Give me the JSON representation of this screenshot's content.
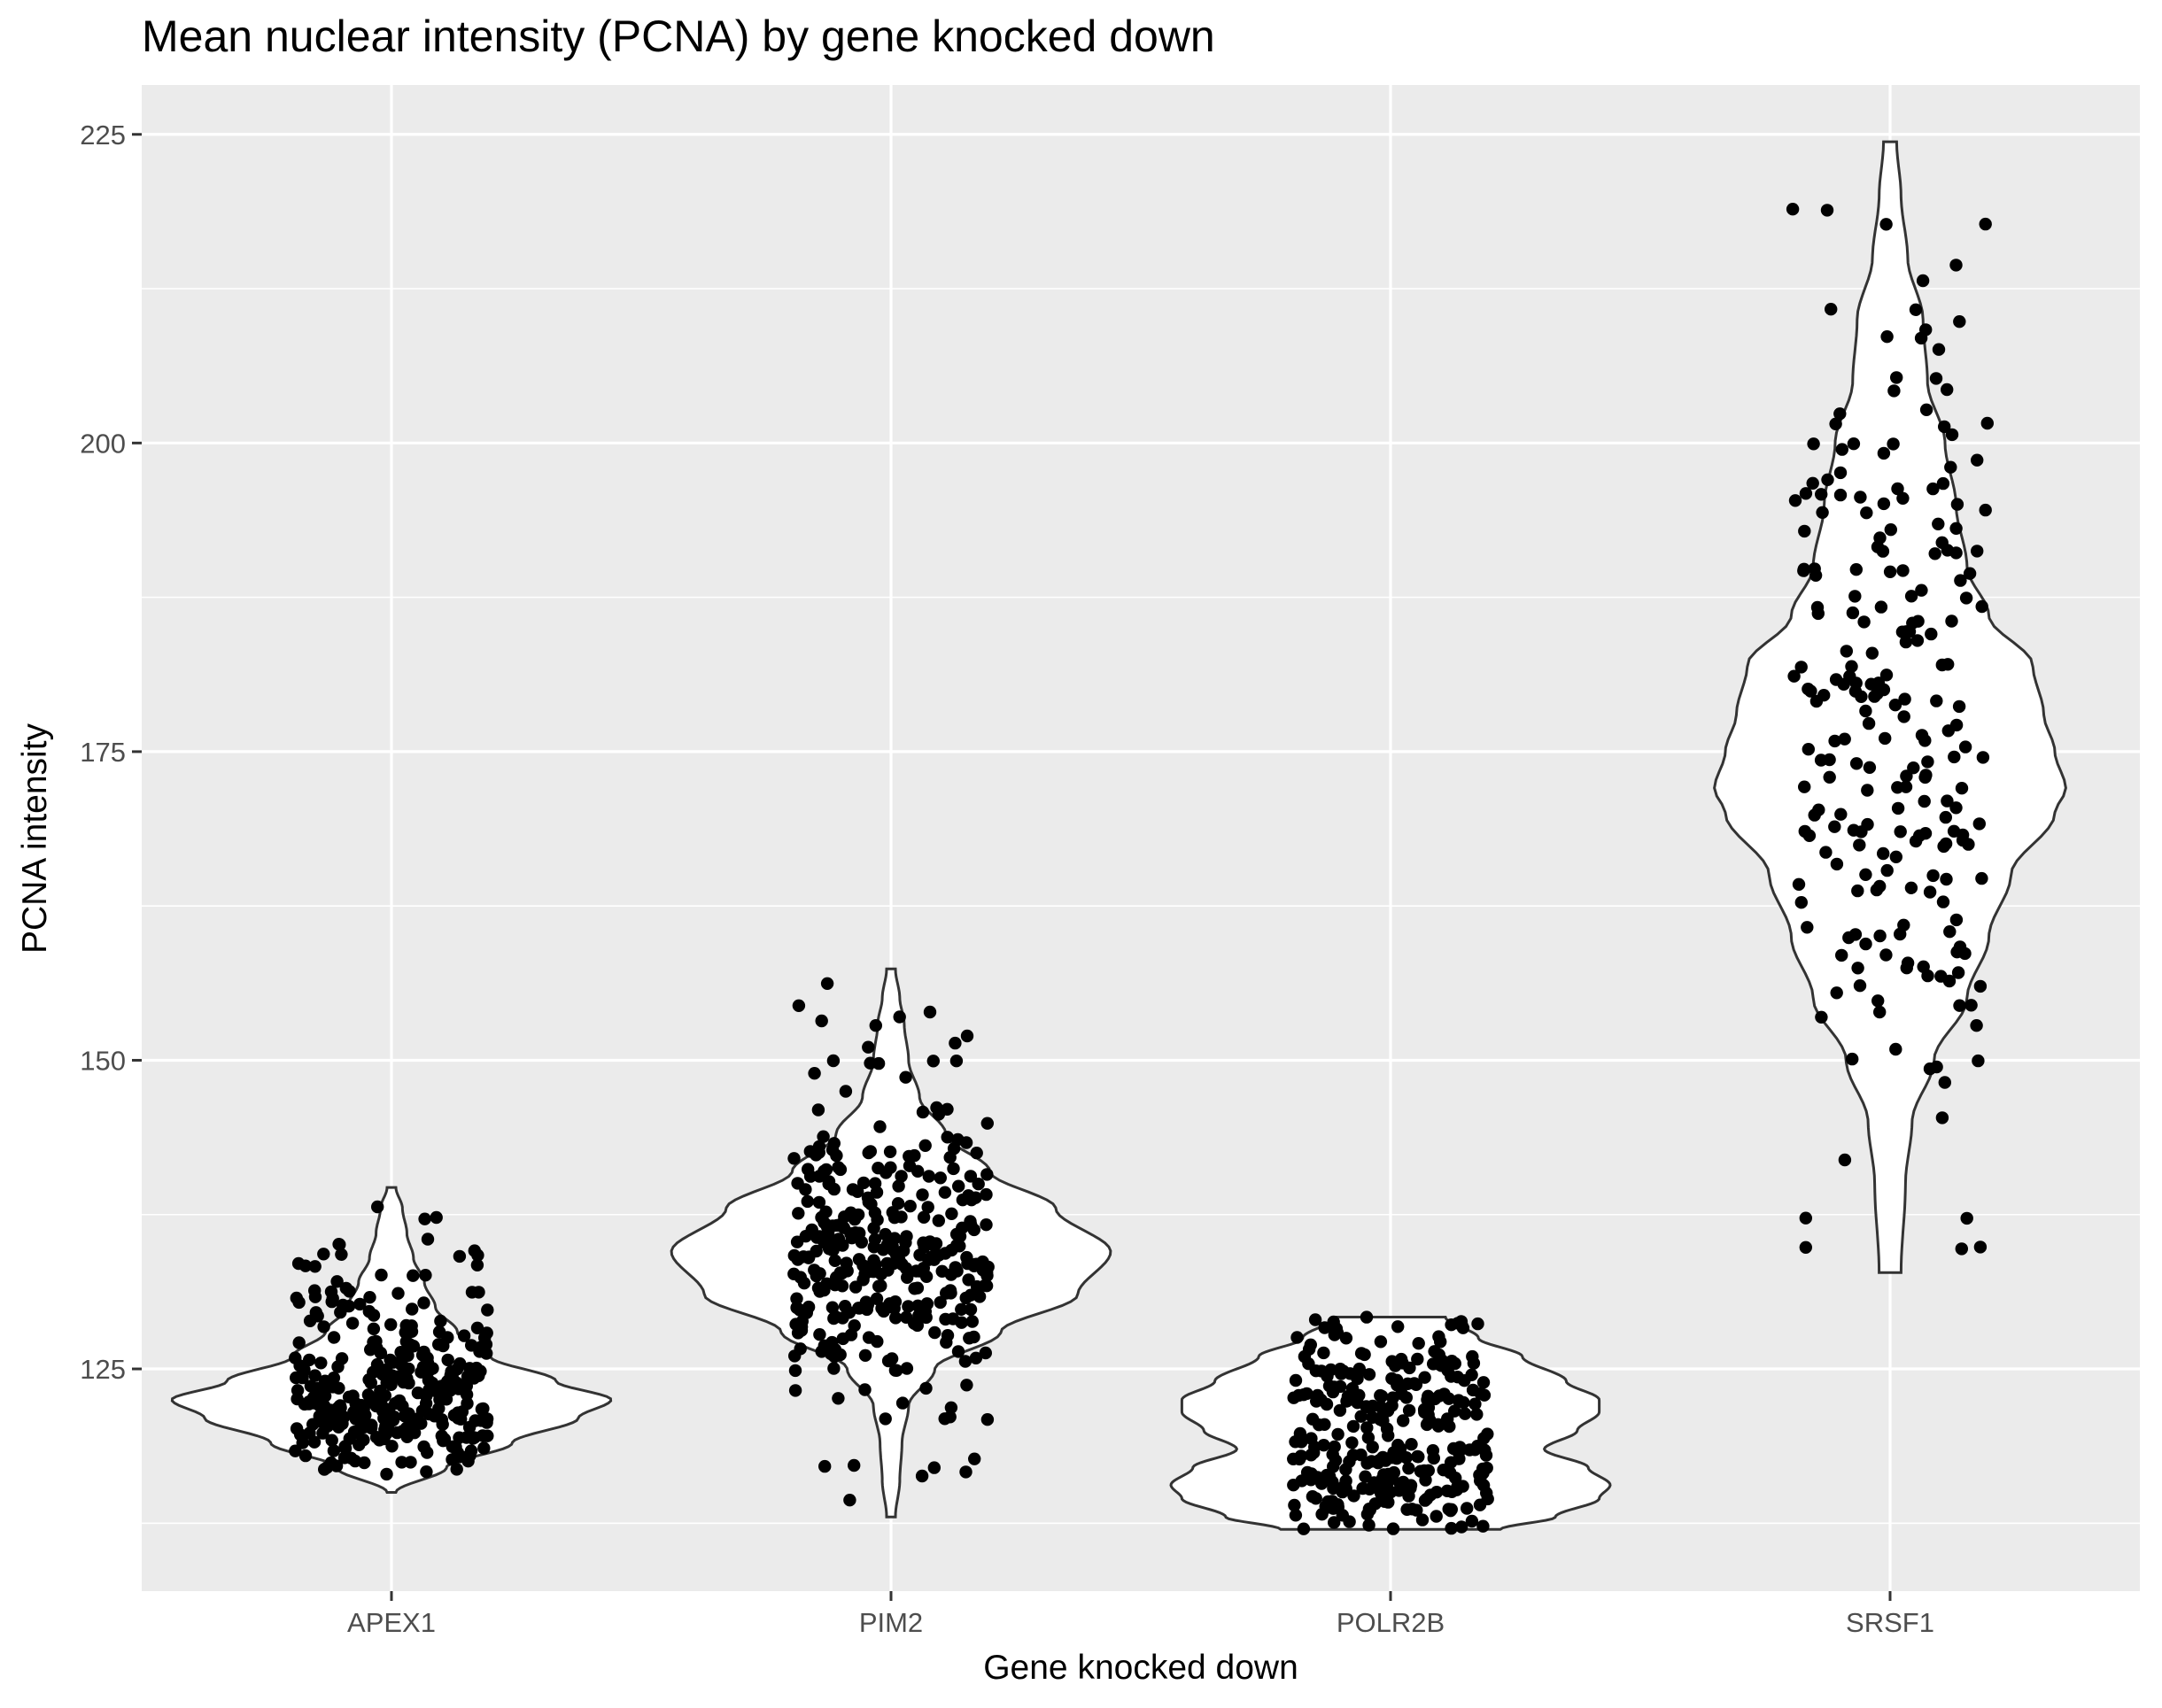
{
  "chart_data": {
    "type": "violin",
    "title": "Mean nuclear intensity (PCNA) by gene knocked down",
    "xlabel": "Gene knocked down",
    "ylabel": "PCNA intensity",
    "categories": [
      "APEX1",
      "PIM2",
      "POLR2B",
      "SRSF1"
    ],
    "ylim": [
      107,
      229
    ],
    "yticks": [
      125,
      150,
      175,
      200,
      225
    ],
    "grid": true,
    "legend": "none",
    "colors": {
      "panel": "#ebebeb",
      "grid": "#ffffff",
      "violin_fill": "#ffffff",
      "violin_stroke": "#333333",
      "point": "#000000"
    },
    "series": [
      {
        "category": "APEX1",
        "min": 115.0,
        "max": 139.7,
        "mode": 122.5,
        "profile": [
          [
            115.0,
            0.02
          ],
          [
            117.0,
            0.25
          ],
          [
            119.0,
            0.55
          ],
          [
            121.0,
            0.85
          ],
          [
            122.5,
            1.0
          ],
          [
            124.0,
            0.75
          ],
          [
            126.0,
            0.45
          ],
          [
            128.0,
            0.3
          ],
          [
            130.0,
            0.2
          ],
          [
            132.0,
            0.15
          ],
          [
            134.0,
            0.1
          ],
          [
            136.0,
            0.07
          ],
          [
            138.0,
            0.05
          ],
          [
            139.7,
            0.02
          ]
        ],
        "n": 320,
        "spread": 5.5
      },
      {
        "category": "PIM2",
        "min": 113.0,
        "max": 157.4,
        "mode": 134.5,
        "profile": [
          [
            113.0,
            0.02
          ],
          [
            116.0,
            0.04
          ],
          [
            119.0,
            0.05
          ],
          [
            122.0,
            0.08
          ],
          [
            125.0,
            0.2
          ],
          [
            128.0,
            0.5
          ],
          [
            131.0,
            0.85
          ],
          [
            134.5,
            1.0
          ],
          [
            138.0,
            0.75
          ],
          [
            141.0,
            0.45
          ],
          [
            144.0,
            0.25
          ],
          [
            147.0,
            0.13
          ],
          [
            150.0,
            0.08
          ],
          [
            153.0,
            0.06
          ],
          [
            155.0,
            0.04
          ],
          [
            157.4,
            0.02
          ]
        ],
        "n": 340,
        "spread": 6.5
      },
      {
        "category": "POLR2B",
        "min": 112.0,
        "max": 129.2,
        "mode": 115.6,
        "profile": [
          [
            112.0,
            0.5
          ],
          [
            113.0,
            0.75
          ],
          [
            114.5,
            0.95
          ],
          [
            115.6,
            1.0
          ],
          [
            117.0,
            0.9
          ],
          [
            118.5,
            0.7
          ],
          [
            120.0,
            0.85
          ],
          [
            121.5,
            0.95
          ],
          [
            122.5,
            0.95
          ],
          [
            124.0,
            0.8
          ],
          [
            126.0,
            0.6
          ],
          [
            127.5,
            0.4
          ],
          [
            129.2,
            0.25
          ]
        ],
        "n": 300,
        "spread": 4.5
      },
      {
        "category": "SRSF1",
        "min": 132.8,
        "max": 224.4,
        "mode": 172.0,
        "profile": [
          [
            132.8,
            0.05
          ],
          [
            140.0,
            0.07
          ],
          [
            145.0,
            0.1
          ],
          [
            150.0,
            0.2
          ],
          [
            155.0,
            0.35
          ],
          [
            160.0,
            0.45
          ],
          [
            165.0,
            0.55
          ],
          [
            170.0,
            0.75
          ],
          [
            172.0,
            0.8
          ],
          [
            175.0,
            0.75
          ],
          [
            178.0,
            0.7
          ],
          [
            182.0,
            0.65
          ],
          [
            186.0,
            0.45
          ],
          [
            190.0,
            0.35
          ],
          [
            195.0,
            0.3
          ],
          [
            200.0,
            0.25
          ],
          [
            205.0,
            0.17
          ],
          [
            210.0,
            0.15
          ],
          [
            215.0,
            0.08
          ],
          [
            220.0,
            0.05
          ],
          [
            224.4,
            0.03
          ]
        ],
        "n": 230,
        "spread": 16
      }
    ]
  }
}
